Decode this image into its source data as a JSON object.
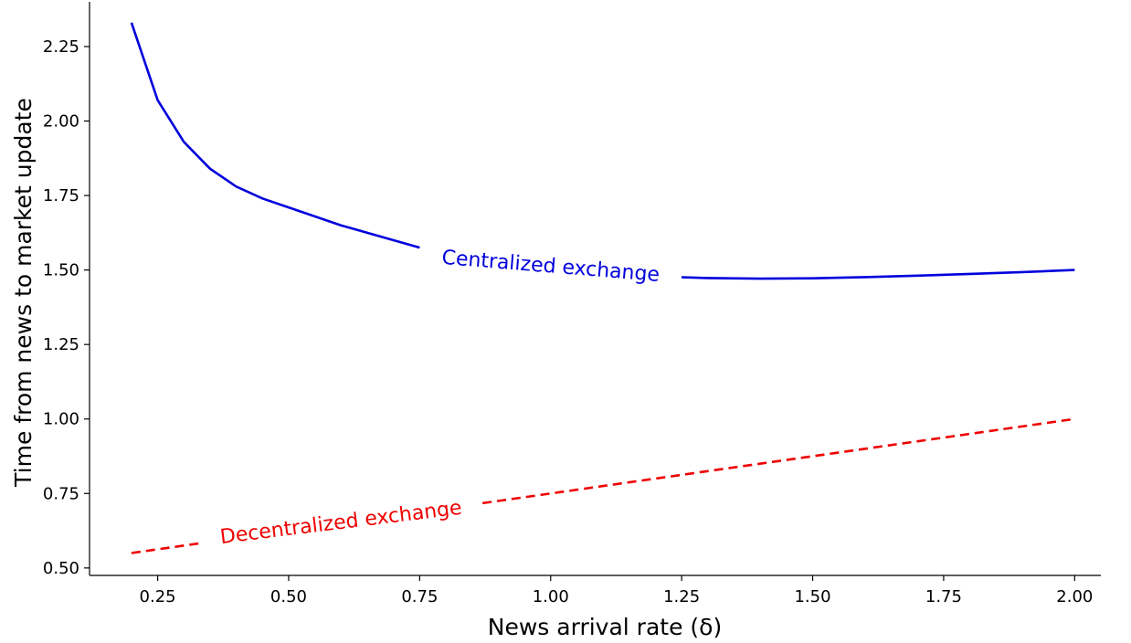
{
  "chart_data": {
    "type": "line",
    "xlabel": "News arrival rate (δ)",
    "ylabel": "Time from news to market update",
    "xlim": [
      0.12,
      2.05
    ],
    "ylim": [
      0.475,
      2.4
    ],
    "x_ticks": [
      "0.25",
      "0.50",
      "0.75",
      "1.00",
      "1.25",
      "1.50",
      "1.75",
      "2.00"
    ],
    "y_ticks": [
      "0.50",
      "0.75",
      "1.00",
      "1.25",
      "1.50",
      "1.75",
      "2.00",
      "2.25"
    ],
    "grid": false,
    "legend": "none",
    "series": [
      {
        "name": "Centralized exchange",
        "style": "solid",
        "color": "#0000dd",
        "x": [
          0.2,
          0.25,
          0.3,
          0.35,
          0.4,
          0.45,
          0.5,
          0.6,
          0.7,
          0.75,
          0.8,
          0.9,
          1.0,
          1.1,
          1.2,
          1.3,
          1.4,
          1.5,
          1.6,
          1.7,
          1.8,
          1.9,
          2.0
        ],
        "y": [
          2.33,
          2.07,
          1.93,
          1.84,
          1.78,
          1.74,
          1.71,
          1.65,
          1.6,
          1.575,
          1.56,
          1.53,
          1.51,
          1.49,
          1.478,
          1.473,
          1.471,
          1.472,
          1.476,
          1.481,
          1.487,
          1.493,
          1.5
        ]
      },
      {
        "name": "Decentralized exchange",
        "style": "dashed",
        "color": "#ee0000",
        "x": [
          0.2,
          2.0
        ],
        "y": [
          0.55,
          1.0
        ]
      }
    ],
    "annotations": [
      {
        "text": "Centralized exchange",
        "series": 0,
        "x": 1.0,
        "y": 1.51,
        "angle": 4.6,
        "gap": [
          0.75,
          1.25
        ]
      },
      {
        "text": "Decentralized exchange",
        "series": 1,
        "x": 0.6,
        "y": 0.65,
        "angle": -7,
        "gap": [
          0.33,
          0.87
        ]
      }
    ]
  }
}
